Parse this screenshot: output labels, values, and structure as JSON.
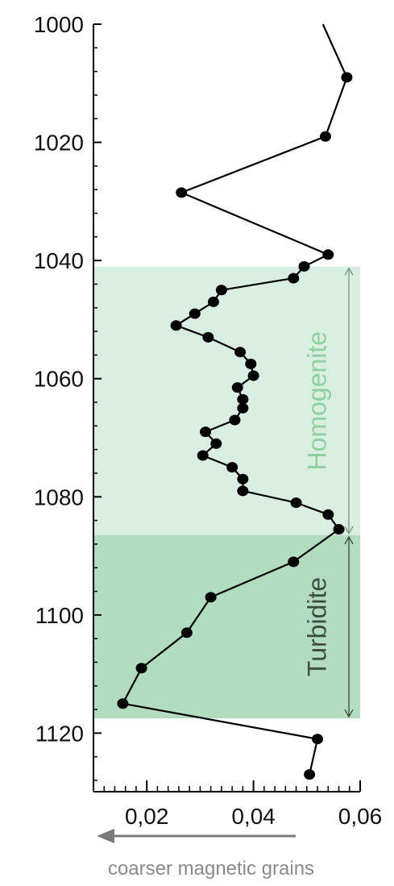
{
  "chart_data": {
    "type": "line",
    "orientation": "depth-profile",
    "xlim": [
      0.01,
      0.06
    ],
    "ylim": [
      1000,
      1128
    ],
    "y_inverted": true,
    "grid": false,
    "legend": "none",
    "x_ticks": [
      0.02,
      0.04,
      0.06
    ],
    "x_tick_labels": [
      "0,02",
      "0,04",
      "0,06"
    ],
    "y_ticks": [
      1000,
      1020,
      1040,
      1060,
      1080,
      1100,
      1120
    ],
    "y_tick_labels": [
      "1000",
      "1020",
      "1040",
      "1060",
      "1080",
      "1100",
      "1120"
    ],
    "x_caption": "coarser magnetic grains",
    "colors": {
      "line": "#000000",
      "marker": "#000000",
      "homogenite_band": "#d9ede0",
      "turbidite_band": "#b2dcc0",
      "homogenite_text": "#8fd19e",
      "turbidite_text": "#3d4f44",
      "arrow": "#7a7a7a",
      "axis": "#000000"
    },
    "bands": [
      {
        "label": "Homogenite",
        "y_from": 1041,
        "y_to": 1086.5
      },
      {
        "label": "Turbidite",
        "y_from": 1086.5,
        "y_to": 1117.5
      }
    ],
    "line_start": {
      "x": 0.053,
      "y": 1000
    },
    "points": [
      {
        "x": 0.0575,
        "y": 1009
      },
      {
        "x": 0.0535,
        "y": 1019
      },
      {
        "x": 0.0265,
        "y": 1028.5
      },
      {
        "x": 0.054,
        "y": 1039
      },
      {
        "x": 0.0495,
        "y": 1041
      },
      {
        "x": 0.0475,
        "y": 1043
      },
      {
        "x": 0.034,
        "y": 1045
      },
      {
        "x": 0.0325,
        "y": 1047
      },
      {
        "x": 0.029,
        "y": 1049
      },
      {
        "x": 0.0255,
        "y": 1051
      },
      {
        "x": 0.0315,
        "y": 1053
      },
      {
        "x": 0.0375,
        "y": 1055.5
      },
      {
        "x": 0.0395,
        "y": 1057.5
      },
      {
        "x": 0.04,
        "y": 1059.5
      },
      {
        "x": 0.037,
        "y": 1061.5
      },
      {
        "x": 0.038,
        "y": 1063.5
      },
      {
        "x": 0.038,
        "y": 1065
      },
      {
        "x": 0.0365,
        "y": 1067
      },
      {
        "x": 0.031,
        "y": 1069
      },
      {
        "x": 0.033,
        "y": 1071
      },
      {
        "x": 0.0305,
        "y": 1073
      },
      {
        "x": 0.036,
        "y": 1075
      },
      {
        "x": 0.038,
        "y": 1077
      },
      {
        "x": 0.038,
        "y": 1079
      },
      {
        "x": 0.048,
        "y": 1081
      },
      {
        "x": 0.054,
        "y": 1083
      },
      {
        "x": 0.056,
        "y": 1085.5
      },
      {
        "x": 0.0475,
        "y": 1091
      },
      {
        "x": 0.032,
        "y": 1097
      },
      {
        "x": 0.0275,
        "y": 1103
      },
      {
        "x": 0.019,
        "y": 1109
      },
      {
        "x": 0.0155,
        "y": 1115
      },
      {
        "x": 0.052,
        "y": 1121
      },
      {
        "x": 0.0505,
        "y": 1127
      }
    ]
  }
}
